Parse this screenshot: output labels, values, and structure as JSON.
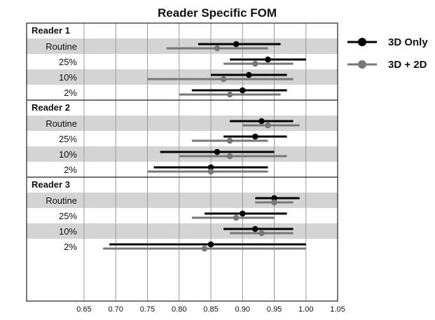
{
  "chart_data": {
    "type": "forest",
    "title": "Reader Specific FOM",
    "xlim": [
      0.65,
      1.05
    ],
    "xticks": [
      "0.65",
      "0.70",
      "0.75",
      "0.80",
      "0.85",
      "0.90",
      "0.95",
      "1.00",
      "1.05"
    ],
    "grid": "vertical",
    "legend_position": "right",
    "series": [
      {
        "name": "3D Only",
        "color": "#000000"
      },
      {
        "name": "3D + 2D",
        "color": "#777777"
      }
    ],
    "groups": [
      {
        "label": "Reader 1",
        "rows": [
          {
            "label": "Routine",
            "shaded": true,
            "3d_only": {
              "est": 0.89,
              "lo": 0.83,
              "hi": 0.96
            },
            "3d_2d": {
              "est": 0.86,
              "lo": 0.78,
              "hi": 0.94
            }
          },
          {
            "label": "25%",
            "shaded": false,
            "3d_only": {
              "est": 0.94,
              "lo": 0.88,
              "hi": 1.0
            },
            "3d_2d": {
              "est": 0.92,
              "lo": 0.87,
              "hi": 0.98
            }
          },
          {
            "label": "10%",
            "shaded": true,
            "3d_only": {
              "est": 0.91,
              "lo": 0.85,
              "hi": 0.97
            },
            "3d_2d": {
              "est": 0.87,
              "lo": 0.75,
              "hi": 0.98
            }
          },
          {
            "label": "2%",
            "shaded": false,
            "3d_only": {
              "est": 0.9,
              "lo": 0.82,
              "hi": 0.97
            },
            "3d_2d": {
              "est": 0.88,
              "lo": 0.8,
              "hi": 0.96
            }
          }
        ]
      },
      {
        "label": "Reader 2",
        "rows": [
          {
            "label": "Routine",
            "shaded": true,
            "3d_only": {
              "est": 0.93,
              "lo": 0.88,
              "hi": 0.98
            },
            "3d_2d": {
              "est": 0.94,
              "lo": 0.9,
              "hi": 0.99
            }
          },
          {
            "label": "25%",
            "shaded": false,
            "3d_only": {
              "est": 0.92,
              "lo": 0.87,
              "hi": 0.97
            },
            "3d_2d": {
              "est": 0.88,
              "lo": 0.82,
              "hi": 0.94
            }
          },
          {
            "label": "10%",
            "shaded": true,
            "3d_only": {
              "est": 0.86,
              "lo": 0.77,
              "hi": 0.95
            },
            "3d_2d": {
              "est": 0.88,
              "lo": 0.8,
              "hi": 0.97
            }
          },
          {
            "label": "2%",
            "shaded": false,
            "3d_only": {
              "est": 0.85,
              "lo": 0.76,
              "hi": 0.94
            },
            "3d_2d": {
              "est": 0.85,
              "lo": 0.75,
              "hi": 0.94
            }
          }
        ]
      },
      {
        "label": "Reader 3",
        "rows": [
          {
            "label": "Routine",
            "shaded": true,
            "3d_only": {
              "est": 0.95,
              "lo": 0.92,
              "hi": 0.99
            },
            "3d_2d": {
              "est": 0.95,
              "lo": 0.92,
              "hi": 0.98
            }
          },
          {
            "label": "25%",
            "shaded": false,
            "3d_only": {
              "est": 0.9,
              "lo": 0.84,
              "hi": 0.97
            },
            "3d_2d": {
              "est": 0.89,
              "lo": 0.82,
              "hi": 0.95
            }
          },
          {
            "label": "10%",
            "shaded": true,
            "3d_only": {
              "est": 0.92,
              "lo": 0.87,
              "hi": 0.98
            },
            "3d_2d": {
              "est": 0.93,
              "lo": 0.88,
              "hi": 0.98
            }
          },
          {
            "label": "2%",
            "shaded": false,
            "3d_only": {
              "est": 0.85,
              "lo": 0.69,
              "hi": 1.0
            },
            "3d_2d": {
              "est": 0.84,
              "lo": 0.68,
              "hi": 1.0
            }
          }
        ]
      }
    ]
  }
}
